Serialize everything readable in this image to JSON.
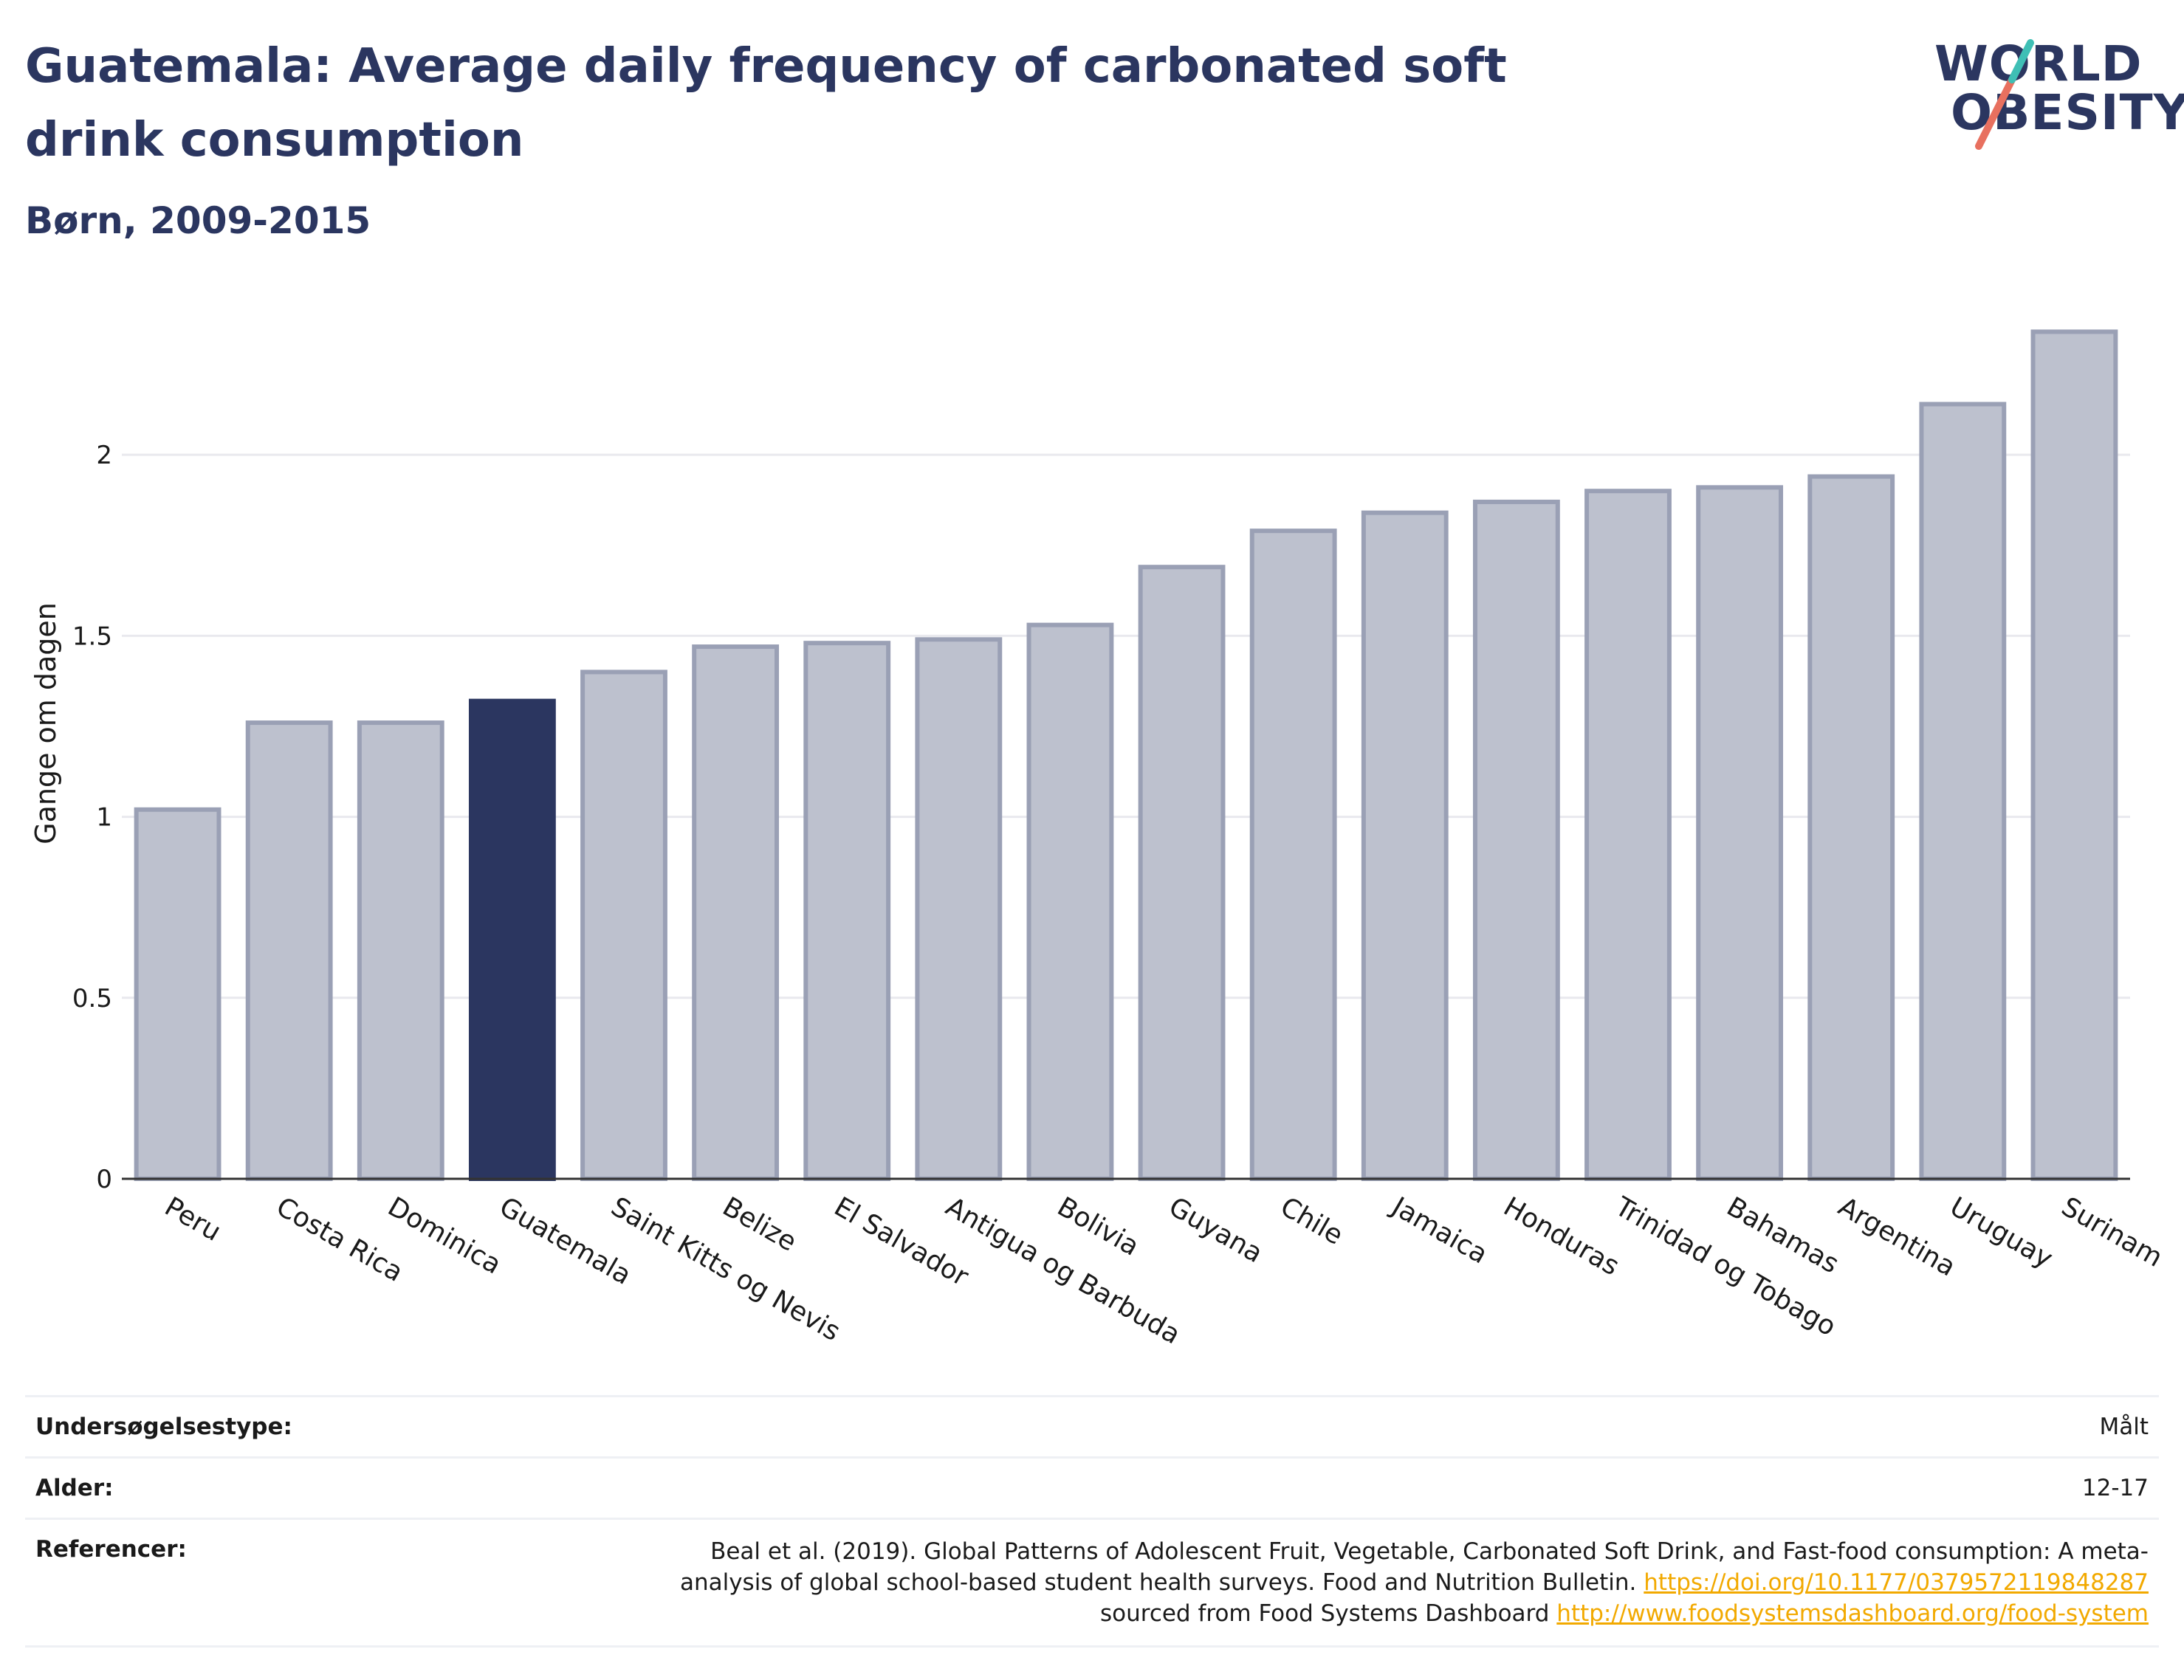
{
  "header": {
    "title": "Guatemala: Average daily frequency of carbonated soft drink consumption",
    "subtitle": "Børn, 2009-2015"
  },
  "logo": {
    "line1": "WORLD",
    "line2": "OBESITY"
  },
  "colors": {
    "title": "#2b3660",
    "highlight_bar": "#2b3660",
    "other_bar_fill": "#bdc1ce",
    "other_bar_stroke": "#9aa0b5",
    "grid": "#e9e9ee",
    "link": "#f2a900"
  },
  "chart_data": {
    "type": "bar",
    "ylabel": "Gange om dagen",
    "ylim": [
      0,
      2.4
    ],
    "yticks": [
      "0",
      "0.5",
      "1",
      "1.5",
      "2"
    ],
    "highlight": "Guatemala",
    "grid": true,
    "categories": [
      "Peru",
      "Costa Rica",
      "Dominica",
      "Guatemala",
      "Saint Kitts og Nevis",
      "Belize",
      "El Salvador",
      "Antigua og Barbuda",
      "Bolivia",
      "Guyana",
      "Chile",
      "Jamaica",
      "Honduras",
      "Trinidad og Tobago",
      "Bahamas",
      "Argentina",
      "Uruguay",
      "Surinam"
    ],
    "values": [
      1.02,
      1.26,
      1.26,
      1.32,
      1.4,
      1.47,
      1.48,
      1.49,
      1.53,
      1.69,
      1.79,
      1.84,
      1.87,
      1.9,
      1.91,
      1.94,
      2.14,
      2.34
    ]
  },
  "info": {
    "survey_type_label": "Undersøgelsestype:",
    "survey_type_value": "Målt",
    "age_label": "Alder:",
    "age_value": "12-17",
    "references_label": "Referencer:",
    "ref_text_1": "Beal et al. (2019). Global Patterns of Adolescent Fruit, Vegetable, Carbonated Soft Drink, and Fast-food consumption: A meta-analysis of global school-based student health surveys. Food and Nutrition Bulletin. ",
    "ref_link_1": "https://doi.org/10.1177/0379572119848287",
    "ref_text_2": " sourced from Food Systems Dashboard ",
    "ref_link_2": "http://www.foodsystemsdashboard.org/food-system"
  }
}
